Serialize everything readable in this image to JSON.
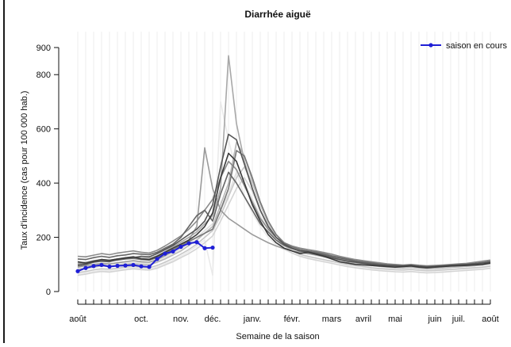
{
  "chart_data": {
    "type": "line",
    "title": "Diarrhée aiguë",
    "xlabel": "Semaine de la saison",
    "ylabel": "Taux d'incidence (cas pour 100 000 hab.)",
    "yticks": [
      0,
      200,
      400,
      600,
      800,
      900
    ],
    "ylim": [
      0,
      900
    ],
    "week_count": 53,
    "month_labels": [
      {
        "label": "août",
        "week": 1
      },
      {
        "label": "oct.",
        "week": 9
      },
      {
        "label": "nov.",
        "week": 14
      },
      {
        "label": "déc.",
        "week": 18
      },
      {
        "label": "janv.",
        "week": 23
      },
      {
        "label": "févr.",
        "week": 28
      },
      {
        "label": "mars",
        "week": 33
      },
      {
        "label": "avril",
        "week": 37
      },
      {
        "label": "mai",
        "week": 41
      },
      {
        "label": "juin",
        "week": 46
      },
      {
        "label": "juil.",
        "week": 49
      },
      {
        "label": "août",
        "week": 53
      }
    ],
    "legend": {
      "label": "saison en cours",
      "position": "top-right"
    },
    "current_color": "#1f1fd6",
    "current_season": {
      "name": "saison en cours",
      "values": [
        75,
        87,
        94,
        98,
        92,
        95,
        96,
        98,
        93,
        91,
        120,
        140,
        148,
        165,
        178,
        182,
        160,
        162
      ]
    },
    "past_seasons": [
      {
        "shade": "#3a3a3a",
        "values": [
          110,
          105,
          112,
          118,
          115,
          120,
          124,
          128,
          120,
          118,
          130,
          145,
          160,
          175,
          190,
          210,
          240,
          290,
          420,
          510,
          480,
          400,
          320,
          260,
          210,
          180,
          160,
          150,
          140,
          145,
          138,
          130,
          120,
          110,
          105,
          100,
          98,
          96,
          94,
          92,
          90,
          92,
          94,
          90,
          88,
          90,
          92,
          94,
          95,
          96,
          98,
          100,
          105
        ]
      },
      {
        "shade": "#555555",
        "values": [
          95,
          100,
          108,
          112,
          110,
          118,
          122,
          125,
          130,
          128,
          140,
          155,
          170,
          190,
          210,
          230,
          260,
          320,
          460,
          580,
          560,
          470,
          380,
          300,
          240,
          200,
          175,
          160,
          150,
          148,
          140,
          132,
          125,
          118,
          112,
          108,
          104,
          100,
          98,
          96,
          95,
          94,
          96,
          92,
          90,
          92,
          94,
          96,
          98,
          100,
          102,
          105,
          108
        ]
      },
      {
        "shade": "#666666",
        "values": [
          120,
          118,
          125,
          130,
          126,
          132,
          135,
          140,
          138,
          136,
          145,
          160,
          175,
          200,
          240,
          280,
          300,
          260,
          360,
          440,
          400,
          350,
          300,
          250,
          220,
          190,
          170,
          158,
          150,
          145,
          142,
          136,
          130,
          124,
          118,
          112,
          108,
          104,
          100,
          98,
          96,
          95,
          97,
          94,
          92,
          93,
          95,
          97,
          99,
          100,
          103,
          106,
          110
        ]
      },
      {
        "shade": "#777777",
        "values": [
          100,
          104,
          110,
          115,
          112,
          116,
          120,
          122,
          118,
          116,
          125,
          140,
          155,
          170,
          185,
          200,
          215,
          230,
          300,
          380,
          520,
          500,
          420,
          330,
          260,
          210,
          180,
          165,
          155,
          150,
          146,
          140,
          132,
          126,
          120,
          114,
          110,
          106,
          102,
          99,
          97,
          96,
          98,
          95,
          93,
          94,
          96,
          98,
          100,
          101,
          104,
          107,
          112
        ]
      },
      {
        "shade": "#8a8a8a",
        "values": [
          130,
          128,
          134,
          140,
          136,
          142,
          146,
          150,
          145,
          142,
          152,
          168,
          186,
          205,
          230,
          260,
          300,
          340,
          420,
          480,
          450,
          390,
          330,
          270,
          230,
          200,
          180,
          168,
          160,
          155,
          150,
          144,
          138,
          130,
          124,
          118,
          114,
          110,
          106,
          102,
          100,
          98,
          100,
          97,
          95,
          96,
          98,
          100,
          102,
          104,
          108,
          112,
          116
        ]
      },
      {
        "shade": "#9a9a9a",
        "values": [
          90,
          95,
          100,
          104,
          102,
          106,
          110,
          114,
          110,
          108,
          118,
          132,
          148,
          165,
          190,
          240,
          530,
          380,
          300,
          270,
          250,
          230,
          210,
          195,
          180,
          168,
          158,
          150,
          144,
          140,
          136,
          130,
          124,
          118,
          112,
          108,
          104,
          100,
          97,
          95,
          93,
          92,
          94,
          91,
          89,
          90,
          92,
          94,
          96,
          98,
          100,
          102,
          106
        ]
      },
      {
        "shade": "#a8a8a8",
        "values": [
          105,
          108,
          114,
          118,
          115,
          120,
          125,
          128,
          124,
          122,
          132,
          148,
          165,
          182,
          200,
          220,
          250,
          280,
          380,
          870,
          620,
          480,
          380,
          300,
          240,
          200,
          178,
          165,
          156,
          150,
          144,
          138,
          130,
          122,
          116,
          110,
          106,
          102,
          99,
          97,
          95,
          94,
          96,
          93,
          91,
          92,
          94,
          96,
          98,
          100,
          102,
          105,
          108
        ]
      },
      {
        "shade": "#b8b8b8",
        "values": [
          80,
          85,
          90,
          94,
          92,
          96,
          100,
          103,
          100,
          98,
          108,
          120,
          135,
          150,
          170,
          190,
          215,
          240,
          320,
          400,
          550,
          500,
          410,
          330,
          260,
          210,
          180,
          160,
          148,
          140,
          134,
          128,
          122,
          116,
          110,
          105,
          100,
          96,
          93,
          90,
          88,
          87,
          89,
          86,
          84,
          85,
          87,
          89,
          91,
          93,
          95,
          98,
          102
        ]
      },
      {
        "shade": "#c8c8c8",
        "values": [
          70,
          74,
          80,
          84,
          82,
          86,
          90,
          93,
          90,
          88,
          96,
          108,
          122,
          138,
          155,
          175,
          200,
          225,
          280,
          350,
          420,
          460,
          400,
          320,
          250,
          200,
          170,
          150,
          138,
          130,
          124,
          118,
          112,
          106,
          100,
          96,
          92,
          88,
          85,
          83,
          81,
          80,
          82,
          79,
          77,
          78,
          80,
          82,
          84,
          86,
          88,
          90,
          94
        ]
      },
      {
        "shade": "#d4d4d4",
        "values": [
          60,
          64,
          70,
          74,
          72,
          76,
          80,
          84,
          81,
          79,
          86,
          98,
          110,
          125,
          140,
          158,
          180,
          205,
          260,
          320,
          380,
          420,
          370,
          300,
          240,
          190,
          160,
          142,
          130,
          122,
          116,
          110,
          104,
          98,
          92,
          88,
          84,
          80,
          77,
          75,
          73,
          72,
          74,
          71,
          69,
          70,
          72,
          74,
          76,
          78,
          80,
          82,
          86
        ]
      },
      {
        "shade": "#e0e0e0",
        "values": [
          85,
          88,
          94,
          98,
          96,
          100,
          104,
          108,
          105,
          102,
          112,
          126,
          140,
          158,
          178,
          200,
          225,
          250,
          300,
          360,
          440,
          400,
          340,
          280,
          230,
          195,
          172,
          158,
          148,
          142,
          136,
          130,
          124,
          118,
          112,
          106,
          102,
          98,
          94,
          92,
          90,
          89,
          91,
          88,
          86,
          87,
          89,
          91,
          93,
          95,
          98,
          101,
          104
        ]
      },
      {
        "shade": "#eaeaea",
        "values": [
          65,
          68,
          74,
          78,
          76,
          80,
          84,
          88,
          85,
          83,
          90,
          102,
          115,
          130,
          148,
          168,
          190,
          60,
          700,
          560,
          440,
          350,
          290,
          240,
          200,
          172,
          154,
          142,
          134,
          128,
          122,
          116,
          110,
          104,
          98,
          94,
          90,
          86,
          83,
          81,
          79,
          78,
          80,
          77,
          75,
          76,
          78,
          80,
          82,
          84,
          86,
          88,
          92
        ]
      }
    ]
  }
}
